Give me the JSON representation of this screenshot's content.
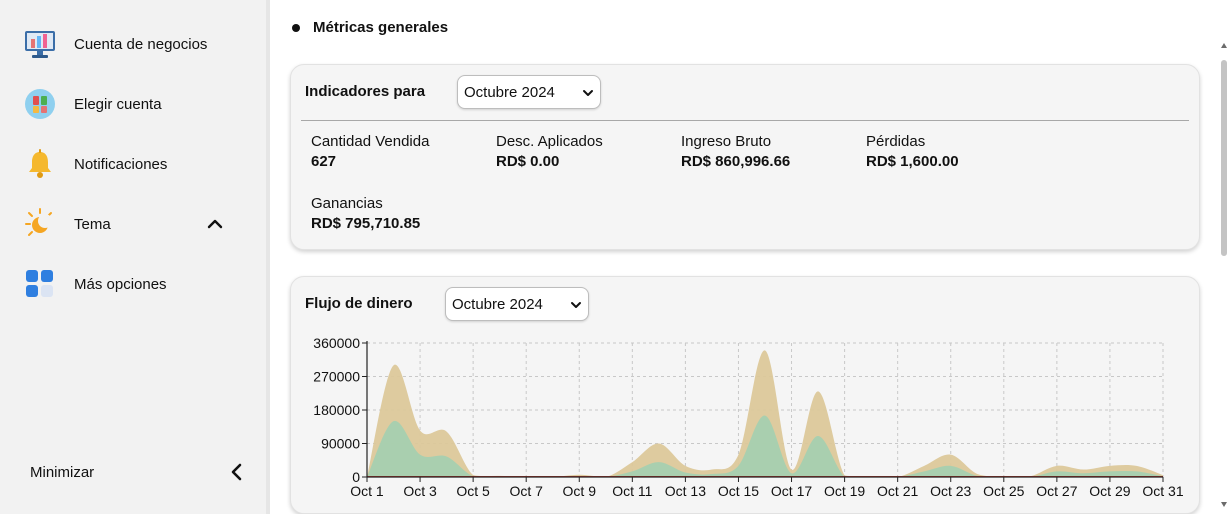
{
  "sidebar": {
    "items": [
      {
        "label": "Cuenta de negocios",
        "icon": "business-account-icon"
      },
      {
        "label": "Elegir cuenta",
        "icon": "choose-account-icon"
      },
      {
        "label": "Notificaciones",
        "icon": "bell-icon"
      },
      {
        "label": "Tema",
        "icon": "theme-sun-moon-icon"
      },
      {
        "label": "Más opciones",
        "icon": "grid-options-icon"
      }
    ],
    "minimize_label": "Minimizar"
  },
  "main": {
    "section_title": "Métricas generales",
    "indicators": {
      "title": "Indicadores para",
      "selected_month": "Octubre 2024",
      "metrics": [
        {
          "label": "Cantidad Vendida",
          "value": "627"
        },
        {
          "label": "Desc. Aplicados",
          "value": "RD$ 0.00"
        },
        {
          "label": "Ingreso Bruto",
          "value": "RD$ 860,996.66"
        },
        {
          "label": "Pérdidas",
          "value": "RD$ 1,600.00"
        },
        {
          "label": "Ganancias",
          "value": "RD$ 795,710.85"
        }
      ]
    },
    "cashflow": {
      "title": "Flujo de dinero",
      "selected_month": "Octubre 2024"
    }
  },
  "colors": {
    "sidebar_bg": "#f2f2f2",
    "card_bg": "#f5f5f5",
    "income_fill": "#dcc89a",
    "profit_fill": "#a3cfb0",
    "loss_line": "#c0392b"
  },
  "chart_data": {
    "type": "area",
    "x": [
      "Oct 1",
      "Oct 2",
      "Oct 3",
      "Oct 4",
      "Oct 5",
      "Oct 6",
      "Oct 7",
      "Oct 8",
      "Oct 9",
      "Oct 10",
      "Oct 11",
      "Oct 12",
      "Oct 13",
      "Oct 14",
      "Oct 15",
      "Oct 16",
      "Oct 17",
      "Oct 18",
      "Oct 19",
      "Oct 20",
      "Oct 21",
      "Oct 22",
      "Oct 23",
      "Oct 24",
      "Oct 25",
      "Oct 26",
      "Oct 27",
      "Oct 28",
      "Oct 29",
      "Oct 30",
      "Oct 31"
    ],
    "x_tick_labels": [
      "Oct 1",
      "Oct 3",
      "Oct 5",
      "Oct 7",
      "Oct 9",
      "Oct 11",
      "Oct 13",
      "Oct 15",
      "Oct 17",
      "Oct 19",
      "Oct 21",
      "Oct 23",
      "Oct 25",
      "Oct 27",
      "Oct 29",
      "Oct 31"
    ],
    "y_ticks": [
      0,
      90000,
      180000,
      270000,
      360000
    ],
    "ylim": [
      0,
      360000
    ],
    "grid": true,
    "series": [
      {
        "values": [
          0,
          300000,
          125000,
          122000,
          5000,
          3000,
          2000,
          0,
          6000,
          0,
          40000,
          90000,
          30000,
          20000,
          60000,
          340000,
          20000,
          230000,
          4000,
          2000,
          0,
          30000,
          60000,
          8000,
          0,
          2000,
          30000,
          20000,
          30000,
          30000,
          5000
        ]
      },
      {
        "values": [
          0,
          150000,
          60000,
          55000,
          2000,
          1000,
          0,
          0,
          2000,
          0,
          15000,
          40000,
          12000,
          8000,
          30000,
          165000,
          10000,
          110000,
          1000,
          0,
          0,
          15000,
          30000,
          3000,
          0,
          0,
          15000,
          10000,
          15000,
          15000,
          2000
        ]
      }
    ]
  }
}
